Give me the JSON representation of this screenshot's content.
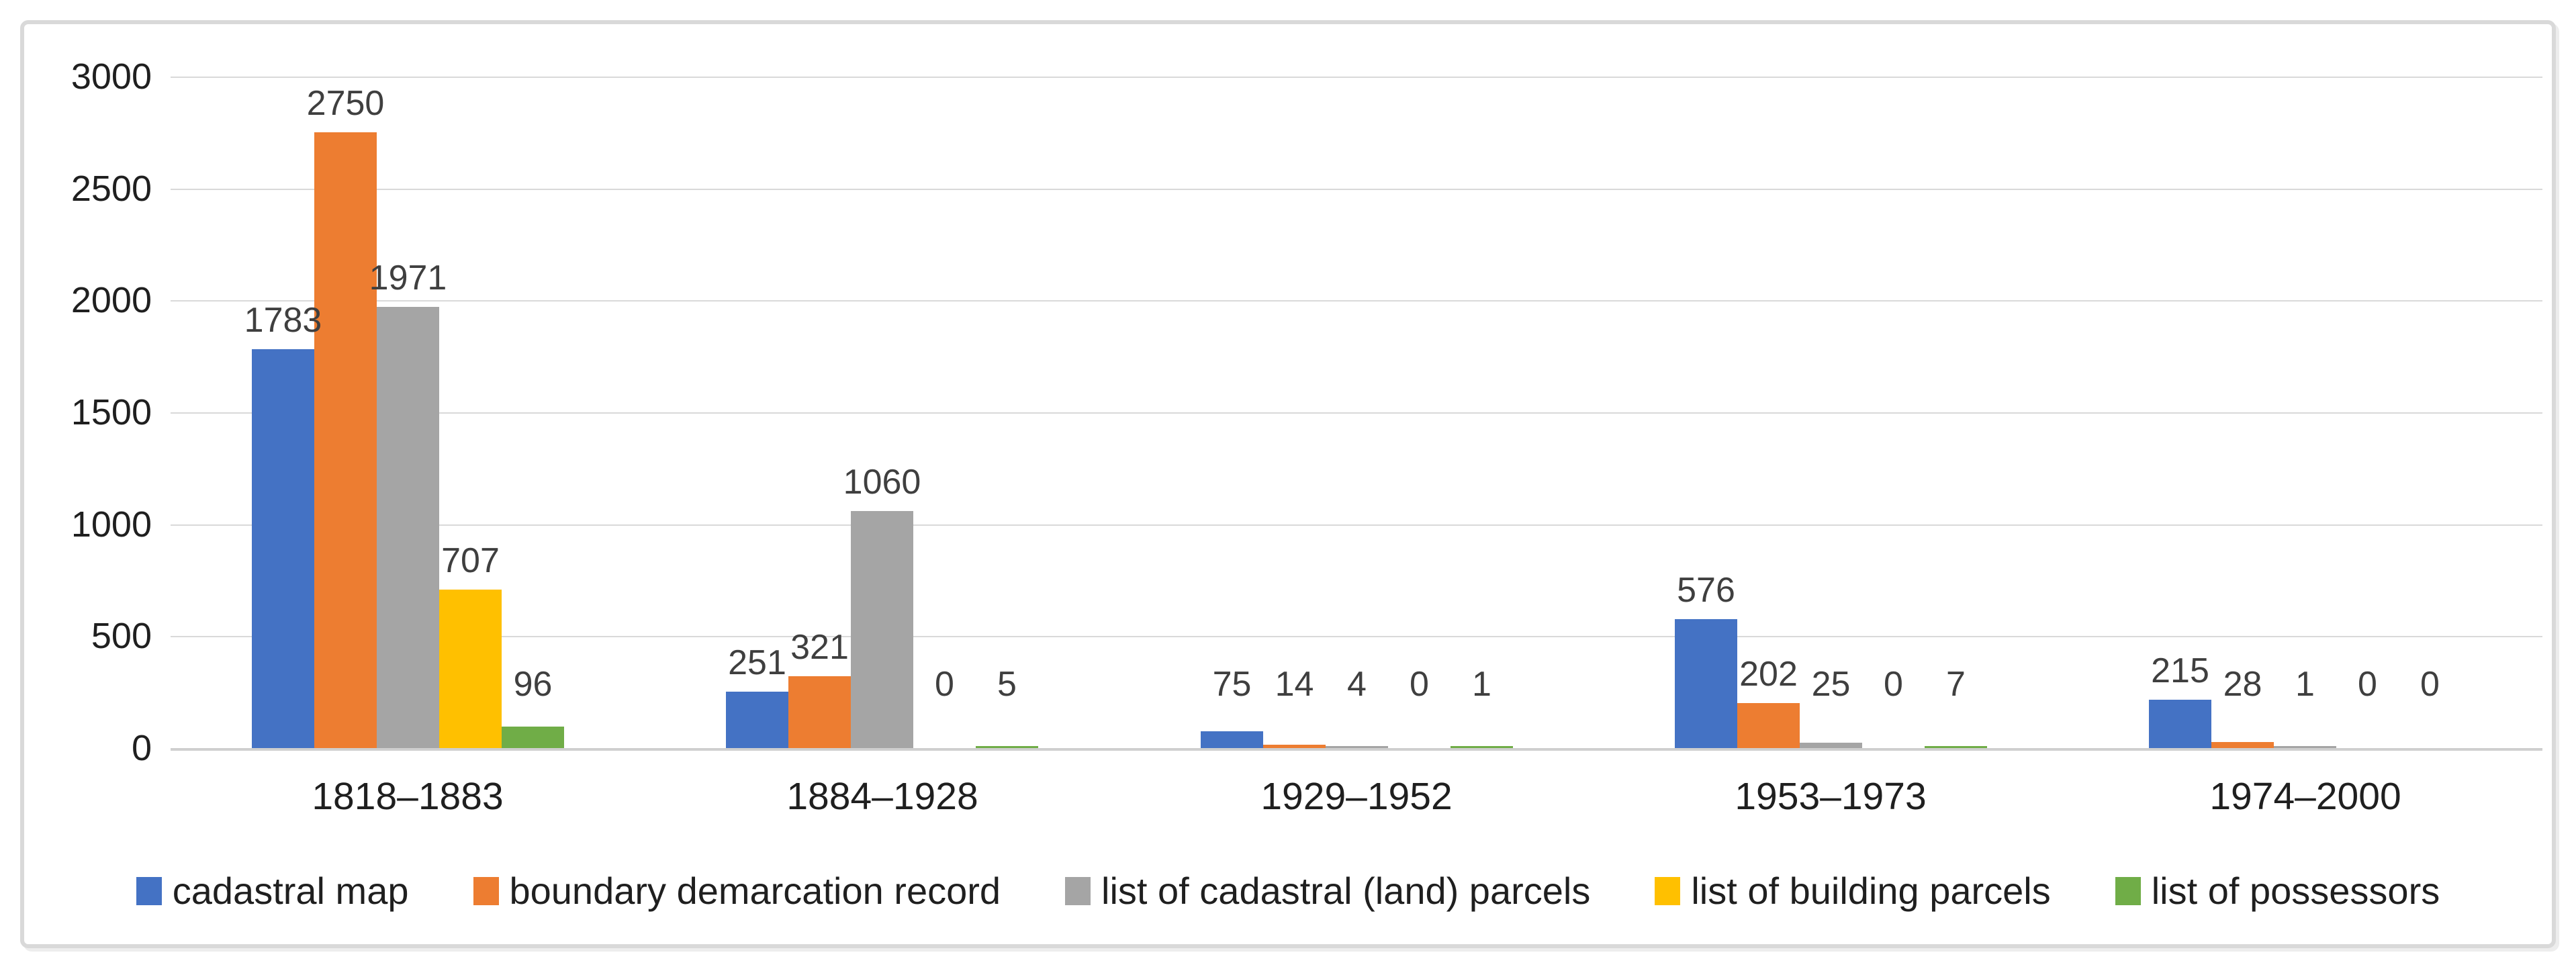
{
  "chart_data": {
    "type": "bar",
    "title": "",
    "xlabel": "",
    "ylabel": "",
    "categories": [
      "1818–1883",
      "1884–1928",
      "1929–1952",
      "1953–1973",
      "1974–2000"
    ],
    "series": [
      {
        "name": "cadastral map",
        "color": "#4472C4",
        "values": [
          1783,
          251,
          75,
          576,
          215
        ]
      },
      {
        "name": "boundary demarcation record",
        "color": "#ED7D31",
        "values": [
          2750,
          321,
          14,
          202,
          28
        ]
      },
      {
        "name": "list of cadastral (land) parcels",
        "color": "#A5A5A5",
        "values": [
          1971,
          1060,
          4,
          25,
          1
        ]
      },
      {
        "name": "list of building parcels",
        "color": "#FFC000",
        "values": [
          707,
          0,
          0,
          0,
          0
        ]
      },
      {
        "name": "list of possessors",
        "color": "#70AD47",
        "values": [
          96,
          5,
          1,
          7,
          0
        ]
      }
    ],
    "y_axis": {
      "min": 0,
      "max": 3000,
      "step": 500,
      "ticks": [
        "0",
        "500",
        "1000",
        "1500",
        "2000",
        "2500",
        "3000"
      ]
    },
    "grid": true,
    "data_labels": true,
    "legend_position": "bottom"
  },
  "style_colors": {
    "gridline": "#d9d9d9",
    "axis_line": "#cfcfcf",
    "tick_text": "#1f1f1f",
    "value_label_text": "#3f3f3f",
    "frame_border": "#d9d9d9",
    "background": "#ffffff"
  }
}
